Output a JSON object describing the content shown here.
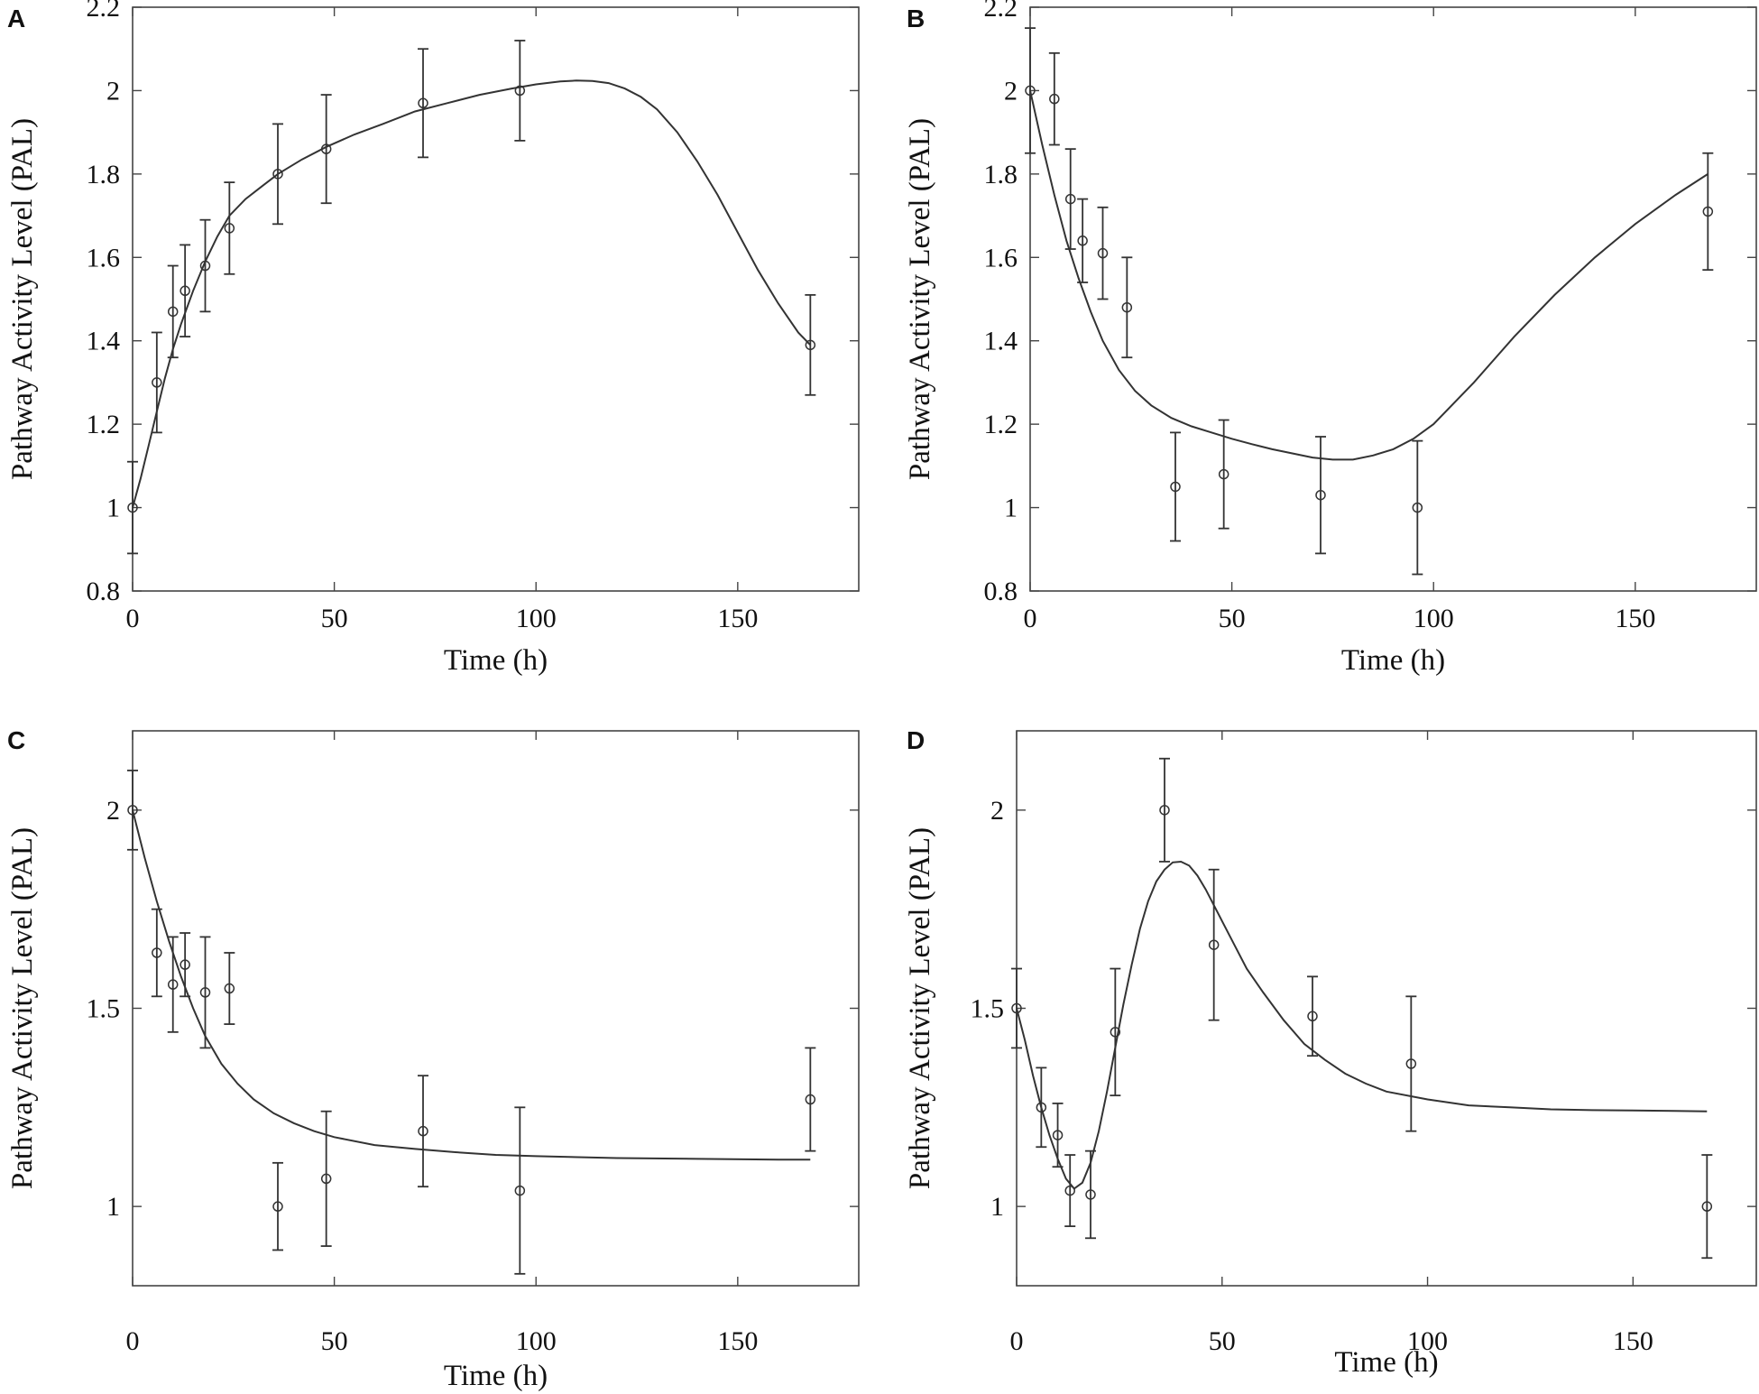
{
  "colors": {
    "ink": "#333333",
    "background": "#ffffff"
  },
  "chart_data": [
    {
      "panel": "A",
      "type": "line",
      "xlabel": "Time (h)",
      "ylabel": "Pathway Activity Level (PAL)",
      "xlim": [
        0,
        180
      ],
      "ylim": [
        0.8,
        2.2
      ],
      "xticks": [
        0,
        50,
        100,
        150
      ],
      "yticks": [
        0.8,
        1.0,
        1.2,
        1.4,
        1.6,
        1.8,
        2.0,
        2.2
      ],
      "ytick_labels": [
        "0.8",
        "1",
        "1.2",
        "1.4",
        "1.6",
        "1.8",
        "2",
        "2.2"
      ],
      "xtick_labels": [
        "0",
        "50",
        "100",
        "150"
      ],
      "points": [
        {
          "x": 0,
          "y": 1.0,
          "err": 0.11
        },
        {
          "x": 6,
          "y": 1.3,
          "err": 0.12
        },
        {
          "x": 10,
          "y": 1.47,
          "err": 0.11
        },
        {
          "x": 13,
          "y": 1.52,
          "err": 0.11
        },
        {
          "x": 18,
          "y": 1.58,
          "err": 0.11
        },
        {
          "x": 24,
          "y": 1.67,
          "err": 0.11
        },
        {
          "x": 36,
          "y": 1.8,
          "err": 0.12
        },
        {
          "x": 48,
          "y": 1.86,
          "err": 0.13
        },
        {
          "x": 72,
          "y": 1.97,
          "err": 0.13
        },
        {
          "x": 96,
          "y": 2.0,
          "err": 0.12
        },
        {
          "x": 168,
          "y": 1.39,
          "err": 0.12
        }
      ],
      "fit": {
        "x": [
          0,
          2,
          4,
          6,
          8,
          10,
          12,
          15,
          18,
          21,
          24,
          28,
          32,
          36,
          42,
          48,
          55,
          62,
          70,
          78,
          86,
          94,
          100,
          106,
          110,
          114,
          118,
          122,
          126,
          130,
          135,
          140,
          145,
          150,
          155,
          160,
          165,
          168
        ],
        "y": [
          1.0,
          1.07,
          1.15,
          1.23,
          1.31,
          1.38,
          1.44,
          1.52,
          1.59,
          1.65,
          1.7,
          1.74,
          1.77,
          1.8,
          1.835,
          1.865,
          1.895,
          1.92,
          1.95,
          1.97,
          1.99,
          2.005,
          2.015,
          2.022,
          2.024,
          2.023,
          2.018,
          2.005,
          1.985,
          1.955,
          1.9,
          1.83,
          1.75,
          1.66,
          1.57,
          1.49,
          1.42,
          1.39
        ]
      }
    },
    {
      "panel": "B",
      "type": "line",
      "xlabel": "Time (h)",
      "ylabel": "Pathway Activity Level (PAL)",
      "xlim": [
        0,
        180
      ],
      "ylim": [
        0.8,
        2.2
      ],
      "xticks": [
        0,
        50,
        100,
        150
      ],
      "yticks": [
        0.8,
        1.0,
        1.2,
        1.4,
        1.6,
        1.8,
        2.0,
        2.2
      ],
      "ytick_labels": [
        "0.8",
        "1",
        "1.2",
        "1.4",
        "1.6",
        "1.8",
        "2",
        "2.2"
      ],
      "xtick_labels": [
        "0",
        "50",
        "100",
        "150"
      ],
      "points": [
        {
          "x": 0,
          "y": 2.0,
          "err": 0.15
        },
        {
          "x": 6,
          "y": 1.98,
          "err": 0.11
        },
        {
          "x": 10,
          "y": 1.74,
          "err": 0.12
        },
        {
          "x": 13,
          "y": 1.64,
          "err": 0.1
        },
        {
          "x": 18,
          "y": 1.61,
          "err": 0.11
        },
        {
          "x": 24,
          "y": 1.48,
          "err": 0.12
        },
        {
          "x": 36,
          "y": 1.05,
          "err": 0.13
        },
        {
          "x": 48,
          "y": 1.08,
          "err": 0.13
        },
        {
          "x": 72,
          "y": 1.03,
          "err": 0.14
        },
        {
          "x": 96,
          "y": 1.0,
          "err": 0.16
        },
        {
          "x": 168,
          "y": 1.71,
          "err": 0.14
        }
      ],
      "fit": {
        "x": [
          0,
          3,
          6,
          9,
          12,
          15,
          18,
          22,
          26,
          30,
          35,
          40,
          45,
          50,
          55,
          60,
          65,
          70,
          75,
          80,
          85,
          90,
          95,
          100,
          110,
          120,
          130,
          140,
          150,
          160,
          168
        ],
        "y": [
          2.0,
          1.87,
          1.75,
          1.64,
          1.55,
          1.47,
          1.4,
          1.33,
          1.28,
          1.245,
          1.215,
          1.195,
          1.18,
          1.165,
          1.152,
          1.14,
          1.13,
          1.12,
          1.115,
          1.115,
          1.125,
          1.14,
          1.165,
          1.2,
          1.3,
          1.41,
          1.51,
          1.6,
          1.68,
          1.75,
          1.8
        ]
      }
    },
    {
      "panel": "C",
      "type": "line",
      "xlabel": "Time (h)",
      "ylabel": "Pathway Activity Level (PAL)",
      "xlim": [
        0,
        180
      ],
      "ylim": [
        0.8,
        2.2
      ],
      "xticks": [
        0,
        50,
        100,
        150
      ],
      "yticks": [
        1.0,
        1.5,
        2.0
      ],
      "ytick_labels": [
        "1",
        "1.5",
        "2"
      ],
      "xtick_labels": [
        "0",
        "50",
        "100",
        "150"
      ],
      "points": [
        {
          "x": 0,
          "y": 2.0,
          "err": 0.1
        },
        {
          "x": 6,
          "y": 1.64,
          "err": 0.11
        },
        {
          "x": 10,
          "y": 1.56,
          "err": 0.12
        },
        {
          "x": 13,
          "y": 1.61,
          "err": 0.08
        },
        {
          "x": 18,
          "y": 1.54,
          "err": 0.14
        },
        {
          "x": 24,
          "y": 1.55,
          "err": 0.09
        },
        {
          "x": 36,
          "y": 1.0,
          "err": 0.11
        },
        {
          "x": 48,
          "y": 1.07,
          "err": 0.17
        },
        {
          "x": 72,
          "y": 1.19,
          "err": 0.14
        },
        {
          "x": 96,
          "y": 1.04,
          "err": 0.21
        },
        {
          "x": 168,
          "y": 1.27,
          "err": 0.13
        }
      ],
      "fit": {
        "x": [
          0,
          3,
          6,
          9,
          12,
          15,
          18,
          22,
          26,
          30,
          35,
          40,
          45,
          50,
          60,
          70,
          80,
          90,
          100,
          120,
          140,
          160,
          168
        ],
        "y": [
          2.0,
          1.88,
          1.77,
          1.67,
          1.58,
          1.5,
          1.43,
          1.36,
          1.31,
          1.27,
          1.235,
          1.21,
          1.19,
          1.175,
          1.155,
          1.145,
          1.137,
          1.13,
          1.127,
          1.122,
          1.12,
          1.118,
          1.118
        ]
      }
    },
    {
      "panel": "D",
      "type": "line",
      "xlabel": "Time (h)",
      "ylabel": "Pathway Activity Level (PAL)",
      "xlim": [
        0,
        180
      ],
      "ylim": [
        0.8,
        2.2
      ],
      "xticks": [
        0,
        50,
        100,
        150
      ],
      "yticks": [
        1.0,
        1.5,
        2.0
      ],
      "ytick_labels": [
        "1",
        "1.5",
        "2"
      ],
      "xtick_labels": [
        "0",
        "50",
        "100",
        "150"
      ],
      "points": [
        {
          "x": 0,
          "y": 1.5,
          "err": 0.1
        },
        {
          "x": 6,
          "y": 1.25,
          "err": 0.1
        },
        {
          "x": 10,
          "y": 1.18,
          "err": 0.08
        },
        {
          "x": 13,
          "y": 1.04,
          "err": 0.09
        },
        {
          "x": 18,
          "y": 1.03,
          "err": 0.11
        },
        {
          "x": 24,
          "y": 1.44,
          "err": 0.16
        },
        {
          "x": 36,
          "y": 2.0,
          "err": 0.13
        },
        {
          "x": 48,
          "y": 1.66,
          "err": 0.19
        },
        {
          "x": 72,
          "y": 1.48,
          "err": 0.1
        },
        {
          "x": 96,
          "y": 1.36,
          "err": 0.17
        },
        {
          "x": 168,
          "y": 1.0,
          "err": 0.13
        }
      ],
      "fit": {
        "x": [
          0,
          2,
          4,
          6,
          8,
          10,
          12,
          14,
          16,
          18,
          20,
          22,
          24,
          26,
          28,
          30,
          32,
          34,
          36,
          38,
          40,
          42,
          44,
          46,
          48,
          50,
          53,
          56,
          60,
          65,
          70,
          75,
          80,
          85,
          90,
          100,
          110,
          120,
          130,
          140,
          150,
          160,
          168
        ],
        "y": [
          1.5,
          1.42,
          1.33,
          1.25,
          1.18,
          1.12,
          1.07,
          1.045,
          1.06,
          1.11,
          1.19,
          1.29,
          1.4,
          1.51,
          1.61,
          1.7,
          1.77,
          1.82,
          1.85,
          1.868,
          1.87,
          1.86,
          1.835,
          1.8,
          1.76,
          1.72,
          1.66,
          1.6,
          1.54,
          1.47,
          1.41,
          1.37,
          1.335,
          1.31,
          1.29,
          1.27,
          1.255,
          1.25,
          1.245,
          1.243,
          1.242,
          1.241,
          1.24
        ]
      }
    }
  ]
}
